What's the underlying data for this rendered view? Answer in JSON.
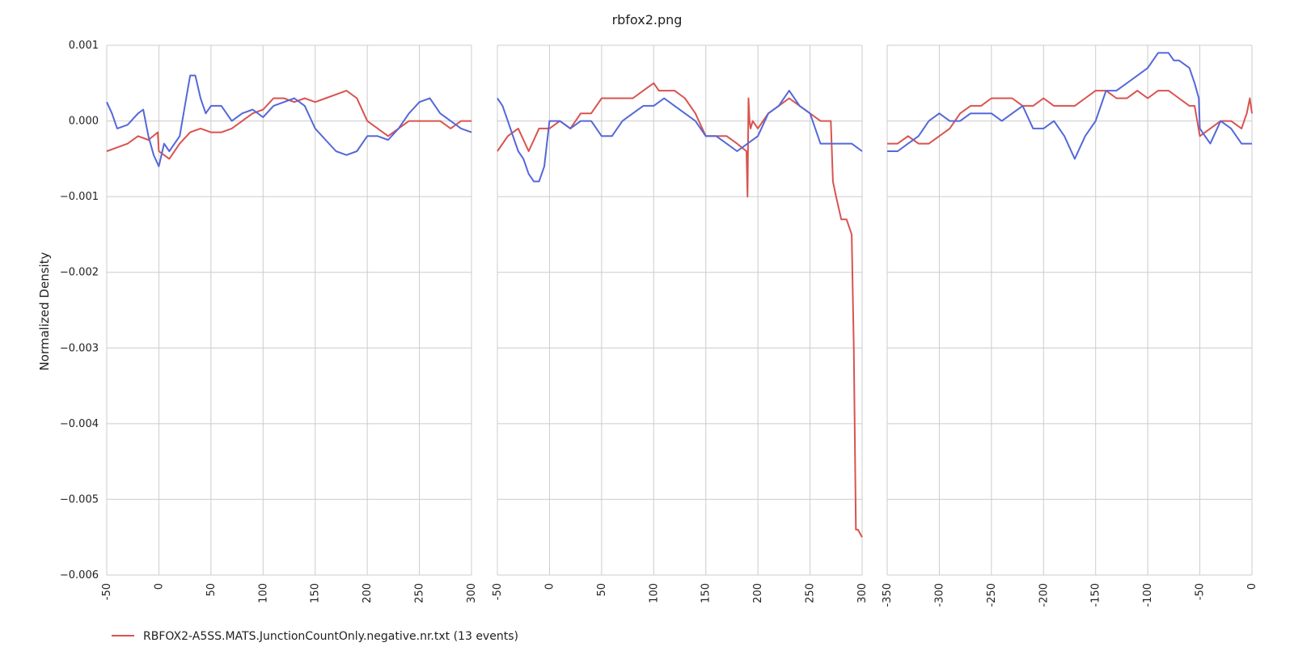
{
  "chart_data": {
    "type": "line",
    "title": "rbfox2.png",
    "ylabel": "Normalized Density",
    "ylim": [
      -0.006,
      0.001
    ],
    "yticks": [
      0.001,
      0.0,
      -0.001,
      -0.002,
      -0.003,
      -0.004,
      -0.005,
      -0.006
    ],
    "ytick_labels": [
      "0.001",
      "0.000",
      "−0.001",
      "−0.002",
      "−0.003",
      "−0.004",
      "−0.005",
      "−0.006"
    ],
    "grid": true,
    "legend": {
      "placement": "bottom-left",
      "entries": [
        "RBFOX2-A5SS.MATS.JunctionCountOnly.negative.nr.txt (13 events)"
      ]
    },
    "colors": {
      "red": "#d9534f",
      "blue": "#5468d9",
      "grid": "#cccccc"
    },
    "panels": [
      {
        "xlim": [
          -50,
          300
        ],
        "xticks": [
          -50,
          0,
          50,
          100,
          150,
          200,
          250,
          300
        ],
        "series": [
          {
            "name": "RBFOX2-A5SS.MATS.JunctionCountOnly.negative.nr.txt (13 events)",
            "color": "#d9534f",
            "x": [
              -50,
              -40,
              -30,
              -20,
              -10,
              -1,
              0,
              10,
              20,
              30,
              40,
              50,
              60,
              70,
              80,
              90,
              100,
              110,
              120,
              130,
              140,
              150,
              160,
              170,
              180,
              190,
              200,
              210,
              220,
              230,
              240,
              250,
              260,
              270,
              280,
              290,
              300
            ],
            "y": [
              -0.0004,
              -0.00035,
              -0.0003,
              -0.0002,
              -0.00025,
              -0.00015,
              -0.0004,
              -0.0005,
              -0.0003,
              -0.00015,
              -0.0001,
              -0.00015,
              -0.00015,
              -0.0001,
              0.0,
              0.0001,
              0.00015,
              0.0003,
              0.0003,
              0.00025,
              0.0003,
              0.00025,
              0.0003,
              0.00035,
              0.0004,
              0.0003,
              0.0,
              -0.0001,
              -0.0002,
              -0.0001,
              0.0,
              0.0,
              0.0,
              0.0,
              -0.0001,
              0.0,
              0.0
            ]
          },
          {
            "name": "",
            "color": "#5468d9",
            "x": [
              -50,
              -45,
              -40,
              -30,
              -20,
              -15,
              -10,
              -5,
              0,
              5,
              10,
              20,
              25,
              30,
              35,
              40,
              45,
              50,
              60,
              70,
              80,
              90,
              100,
              110,
              120,
              130,
              140,
              150,
              160,
              170,
              180,
              190,
              200,
              210,
              220,
              230,
              240,
              250,
              260,
              270,
              280,
              290,
              300
            ],
            "y": [
              0.00025,
              0.0001,
              -0.0001,
              -5e-05,
              0.0001,
              0.00015,
              -0.0002,
              -0.00045,
              -0.0006,
              -0.0003,
              -0.0004,
              -0.0002,
              0.0002,
              0.0006,
              0.0006,
              0.0003,
              0.0001,
              0.0002,
              0.0002,
              0.0,
              0.0001,
              0.00015,
              5e-05,
              0.0002,
              0.00025,
              0.0003,
              0.0002,
              -0.0001,
              -0.00025,
              -0.0004,
              -0.00045,
              -0.0004,
              -0.0002,
              -0.0002,
              -0.00025,
              -0.0001,
              0.0001,
              0.00025,
              0.0003,
              0.0001,
              0.0,
              -0.0001,
              -0.00015
            ]
          }
        ]
      },
      {
        "xlim": [
          -50,
          300
        ],
        "xticks": [
          -50,
          0,
          50,
          100,
          150,
          200,
          250,
          300
        ],
        "series": [
          {
            "name": "RBFOX2-A5SS.MATS.JunctionCountOnly.negative.nr.txt (13 events)",
            "color": "#d9534f",
            "x": [
              -50,
              -40,
              -30,
              -20,
              -10,
              0,
              10,
              20,
              30,
              40,
              50,
              60,
              70,
              80,
              90,
              100,
              105,
              110,
              120,
              130,
              140,
              150,
              160,
              170,
              180,
              189,
              190,
              191,
              192,
              193,
              195,
              200,
              210,
              220,
              230,
              240,
              250,
              260,
              270,
              272,
              275,
              280,
              285,
              290,
              292,
              294,
              296,
              300
            ],
            "y": [
              -0.0004,
              -0.0002,
              -0.0001,
              -0.0004,
              -0.0001,
              -0.0001,
              0.0,
              -0.0001,
              0.0001,
              0.0001,
              0.0003,
              0.0003,
              0.0003,
              0.0003,
              0.0004,
              0.0005,
              0.0004,
              0.0004,
              0.0004,
              0.0003,
              0.0001,
              -0.0002,
              -0.0002,
              -0.0002,
              -0.0003,
              -0.0004,
              -0.001,
              0.0003,
              0.0,
              -0.0001,
              0.0,
              -0.0001,
              0.0001,
              0.0002,
              0.0003,
              0.0002,
              0.0001,
              0.0,
              0.0,
              -0.0008,
              -0.001,
              -0.0013,
              -0.0013,
              -0.0015,
              -0.003,
              -0.0054,
              -0.0054,
              -0.0055
            ]
          },
          {
            "name": "",
            "color": "#5468d9",
            "x": [
              -50,
              -45,
              -40,
              -35,
              -30,
              -25,
              -20,
              -15,
              -10,
              -5,
              0,
              10,
              20,
              30,
              40,
              50,
              60,
              70,
              80,
              90,
              100,
              110,
              120,
              130,
              140,
              150,
              160,
              170,
              180,
              190,
              200,
              210,
              220,
              230,
              240,
              250,
              260,
              270,
              280,
              290,
              300
            ],
            "y": [
              0.0003,
              0.0002,
              0.0,
              -0.0002,
              -0.0004,
              -0.0005,
              -0.0007,
              -0.0008,
              -0.0008,
              -0.0006,
              0.0,
              0.0,
              -0.0001,
              0.0,
              0.0,
              -0.0002,
              -0.0002,
              0.0,
              0.0001,
              0.0002,
              0.0002,
              0.0003,
              0.0002,
              0.0001,
              0.0,
              -0.0002,
              -0.0002,
              -0.0003,
              -0.0004,
              -0.0003,
              -0.0002,
              0.0001,
              0.0002,
              0.0004,
              0.0002,
              0.0001,
              -0.0003,
              -0.0003,
              -0.0003,
              -0.0003,
              -0.0004
            ]
          }
        ]
      },
      {
        "xlim": [
          -350,
          0
        ],
        "xticks": [
          -350,
          -300,
          -250,
          -200,
          -150,
          -100,
          -50,
          0
        ],
        "series": [
          {
            "name": "RBFOX2-A5SS.MATS.JunctionCountOnly.negative.nr.txt (13 events)",
            "color": "#d9534f",
            "x": [
              -350,
              -340,
              -330,
              -320,
              -310,
              -300,
              -290,
              -280,
              -270,
              -260,
              -250,
              -240,
              -230,
              -220,
              -210,
              -200,
              -190,
              -180,
              -170,
              -160,
              -150,
              -140,
              -130,
              -120,
              -110,
              -100,
              -90,
              -80,
              -70,
              -60,
              -55,
              -50,
              -40,
              -30,
              -20,
              -10,
              -5,
              -2,
              0
            ],
            "y": [
              -0.0003,
              -0.0003,
              -0.0002,
              -0.0003,
              -0.0003,
              -0.0002,
              -0.0001,
              0.0001,
              0.0002,
              0.0002,
              0.0003,
              0.0003,
              0.0003,
              0.0002,
              0.0002,
              0.0003,
              0.0002,
              0.0002,
              0.0002,
              0.0003,
              0.0004,
              0.0004,
              0.0003,
              0.0003,
              0.0004,
              0.0003,
              0.0004,
              0.0004,
              0.0003,
              0.0002,
              0.0002,
              -0.0002,
              -0.0001,
              0.0,
              0.0,
              -0.0001,
              0.0001,
              0.0003,
              0.0001
            ]
          },
          {
            "name": "",
            "color": "#5468d9",
            "x": [
              -350,
              -340,
              -330,
              -320,
              -310,
              -300,
              -290,
              -280,
              -270,
              -260,
              -250,
              -240,
              -230,
              -220,
              -210,
              -200,
              -190,
              -180,
              -170,
              -160,
              -150,
              -140,
              -130,
              -120,
              -110,
              -100,
              -90,
              -85,
              -80,
              -75,
              -70,
              -60,
              -55,
              -51,
              -50,
              -45,
              -40,
              -30,
              -20,
              -10,
              -5,
              0
            ],
            "y": [
              -0.0004,
              -0.0004,
              -0.0003,
              -0.0002,
              0.0,
              0.0001,
              0.0,
              0.0,
              0.0001,
              0.0001,
              0.0001,
              0.0,
              0.0001,
              0.0002,
              -0.0001,
              -0.0001,
              0.0,
              -0.0002,
              -0.0005,
              -0.0002,
              0.0,
              0.0004,
              0.0004,
              0.0005,
              0.0006,
              0.0007,
              0.0009,
              0.0009,
              0.0009,
              0.0008,
              0.0008,
              0.0007,
              0.0005,
              0.0003,
              -0.0001,
              -0.0002,
              -0.0003,
              0.0,
              -0.0001,
              -0.0003,
              -0.0003,
              -0.0003
            ]
          }
        ]
      }
    ]
  }
}
